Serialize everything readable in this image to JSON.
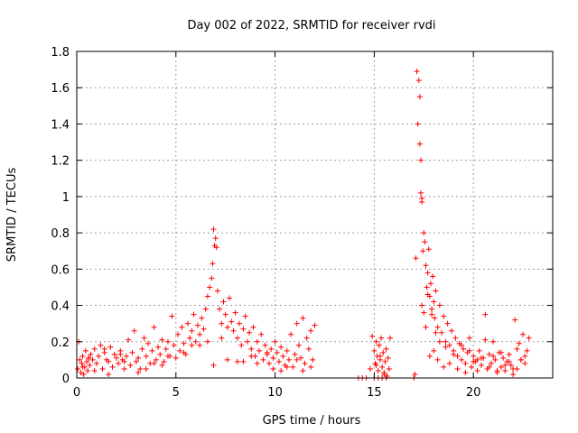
{
  "chart_data": {
    "type": "scatter",
    "title": "Day 002 of 2022, SRMTID for receiver rvdi",
    "xlabel": "GPS time / hours",
    "ylabel": "SRMTID / TECUs",
    "xlim": [
      0,
      24
    ],
    "ylim": [
      0,
      1.8
    ],
    "xticks": [
      0,
      5,
      10,
      15,
      20
    ],
    "xtick_labels": [
      "0",
      "5",
      "10",
      "15",
      "20"
    ],
    "yticks": [
      0,
      0.2,
      0.4,
      0.6,
      0.8,
      1.0,
      1.2,
      1.4,
      1.6,
      1.8
    ],
    "ytick_labels": [
      "0",
      "0.2",
      "0.4",
      "0.6",
      "0.8",
      "1",
      "1.2",
      "1.4",
      "1.6",
      "1.8"
    ],
    "marker": "+",
    "color": "#ff0000",
    "grid": true,
    "series": [
      {
        "name": "SRMTID",
        "x": [
          0.05,
          0.1,
          0.15,
          0.2,
          0.25,
          0.3,
          0.35,
          0.4,
          0.45,
          0.5,
          0.55,
          0.6,
          0.65,
          0.7,
          0.8,
          0.9,
          1.0,
          1.1,
          1.2,
          1.3,
          1.4,
          1.5,
          1.6,
          1.7,
          1.8,
          1.9,
          2.0,
          2.1,
          2.2,
          2.3,
          2.4,
          2.5,
          2.6,
          2.7,
          2.8,
          2.9,
          3.0,
          3.1,
          3.2,
          3.3,
          3.4,
          3.5,
          3.6,
          3.7,
          3.8,
          3.9,
          4.0,
          4.1,
          4.2,
          4.3,
          4.4,
          4.5,
          4.6,
          4.7,
          4.8,
          4.9,
          5.0,
          5.1,
          5.2,
          5.3,
          5.4,
          5.5,
          5.6,
          5.7,
          5.8,
          5.9,
          6.0,
          6.1,
          6.2,
          6.3,
          6.4,
          6.5,
          6.6,
          6.7,
          6.8,
          6.85,
          6.9,
          6.95,
          7.0,
          7.05,
          7.1,
          7.2,
          7.3,
          7.4,
          7.5,
          7.6,
          7.7,
          7.8,
          7.9,
          8.0,
          8.1,
          8.2,
          8.3,
          8.4,
          8.5,
          8.6,
          8.7,
          8.8,
          8.9,
          9.0,
          9.1,
          9.2,
          9.3,
          9.4,
          9.5,
          9.6,
          9.7,
          9.8,
          9.9,
          10.0,
          10.1,
          10.2,
          10.3,
          10.4,
          10.5,
          10.6,
          10.7,
          10.8,
          10.9,
          11.0,
          11.1,
          11.2,
          11.3,
          11.4,
          11.5,
          11.6,
          11.7,
          11.8,
          11.9,
          12.0,
          0.3,
          0.9,
          1.6,
          2.4,
          3.1,
          3.9,
          4.6,
          5.4,
          6.2,
          6.9,
          7.6,
          8.4,
          9.1,
          9.9,
          10.6,
          11.4,
          0.6,
          1.4,
          2.2,
          3.5,
          4.3,
          5.8,
          6.6,
          7.3,
          8.1,
          8.8,
          9.6,
          10.3,
          11.1,
          11.8,
          14.2,
          14.4,
          14.6,
          14.8,
          14.9,
          15.0,
          15.05,
          15.1,
          15.15,
          15.2,
          15.25,
          15.3,
          15.35,
          15.4,
          15.45,
          15.5,
          15.55,
          15.6,
          15.65,
          15.7,
          15.75,
          15.8,
          15.0,
          15.2,
          15.4,
          15.6,
          15.1,
          15.3,
          15.5,
          17.0,
          17.05,
          17.1,
          17.15,
          17.2,
          17.25,
          17.3,
          17.3,
          17.35,
          17.35,
          17.4,
          17.4,
          17.45,
          17.5,
          17.55,
          17.6,
          17.65,
          17.7,
          17.75,
          17.8,
          17.85,
          17.9,
          17.95,
          18.0,
          18.05,
          18.1,
          18.2,
          18.3,
          18.4,
          18.5,
          18.6,
          18.7,
          18.8,
          18.9,
          19.0,
          19.1,
          19.2,
          19.3,
          19.4,
          19.5,
          19.6,
          19.7,
          19.8,
          19.9,
          20.0,
          20.1,
          20.2,
          20.3,
          20.4,
          20.5,
          20.6,
          20.7,
          20.8,
          20.9,
          21.0,
          21.1,
          21.2,
          21.3,
          21.4,
          21.5,
          21.6,
          21.7,
          21.8,
          21.9,
          22.0,
          22.1,
          22.2,
          22.3,
          22.4,
          22.5,
          22.6,
          22.7,
          22.8,
          17.4,
          17.6,
          17.8,
          18.0,
          18.2,
          18.5,
          18.8,
          19.2,
          19.6,
          20.0,
          20.4,
          20.8,
          21.2,
          21.6,
          22.0,
          22.4,
          17.5,
          17.7,
          17.9,
          18.1,
          18.3,
          18.6,
          19.0,
          19.4,
          19.8,
          20.2,
          20.6,
          21.0,
          21.4,
          21.8,
          22.2,
          22.6
        ],
        "y": [
          0.05,
          0.2,
          0.1,
          0.03,
          0.08,
          0.12,
          0.02,
          0.06,
          0.15,
          0.09,
          0.04,
          0.11,
          0.07,
          0.13,
          0.1,
          0.16,
          0.08,
          0.12,
          0.18,
          0.05,
          0.14,
          0.1,
          0.09,
          0.17,
          0.06,
          0.13,
          0.11,
          0.08,
          0.15,
          0.1,
          0.05,
          0.12,
          0.21,
          0.07,
          0.14,
          0.26,
          0.09,
          0.11,
          0.05,
          0.16,
          0.22,
          0.12,
          0.19,
          0.08,
          0.15,
          0.28,
          0.1,
          0.17,
          0.13,
          0.21,
          0.09,
          0.16,
          0.2,
          0.12,
          0.34,
          0.18,
          0.11,
          0.24,
          0.15,
          0.28,
          0.19,
          0.13,
          0.3,
          0.22,
          0.26,
          0.35,
          0.2,
          0.29,
          0.24,
          0.33,
          0.27,
          0.38,
          0.45,
          0.5,
          0.55,
          0.63,
          0.82,
          0.73,
          0.77,
          0.72,
          0.48,
          0.38,
          0.3,
          0.42,
          0.35,
          0.28,
          0.44,
          0.31,
          0.26,
          0.36,
          0.22,
          0.3,
          0.18,
          0.27,
          0.34,
          0.2,
          0.25,
          0.16,
          0.28,
          0.12,
          0.2,
          0.15,
          0.24,
          0.1,
          0.18,
          0.13,
          0.08,
          0.16,
          0.11,
          0.2,
          0.14,
          0.09,
          0.17,
          0.12,
          0.07,
          0.15,
          0.1,
          0.24,
          0.06,
          0.13,
          0.3,
          0.18,
          0.11,
          0.33,
          0.08,
          0.22,
          0.16,
          0.26,
          0.1,
          0.29,
          0.06,
          0.04,
          0.02,
          0.09,
          0.03,
          0.08,
          0.12,
          0.14,
          0.18,
          0.07,
          0.1,
          0.09,
          0.08,
          0.05,
          0.06,
          0.04,
          0.11,
          0.16,
          0.13,
          0.05,
          0.07,
          0.18,
          0.2,
          0.22,
          0.09,
          0.12,
          0.14,
          0.04,
          0.1,
          0.06,
          0.0,
          0.0,
          0.0,
          0.05,
          0.23,
          0.15,
          0.08,
          0.2,
          0.12,
          0.04,
          0.18,
          0.1,
          0.22,
          0.06,
          0.14,
          0.02,
          0.09,
          0.16,
          0.01,
          0.11,
          0.05,
          0.22,
          0.0,
          0.0,
          0.0,
          0.0,
          0.07,
          0.12,
          0.03,
          0.0,
          0.02,
          0.66,
          1.69,
          1.4,
          1.64,
          1.29,
          1.55,
          1.2,
          1.02,
          0.97,
          0.99,
          0.7,
          0.8,
          0.75,
          0.62,
          0.5,
          0.58,
          0.71,
          0.45,
          0.52,
          0.38,
          0.56,
          0.42,
          0.33,
          0.48,
          0.28,
          0.4,
          0.25,
          0.34,
          0.2,
          0.3,
          0.18,
          0.26,
          0.15,
          0.22,
          0.12,
          0.19,
          0.1,
          0.16,
          0.08,
          0.14,
          0.22,
          0.06,
          0.12,
          0.09,
          0.04,
          0.15,
          0.07,
          0.11,
          0.35,
          0.05,
          0.13,
          0.08,
          0.2,
          0.1,
          0.03,
          0.14,
          0.06,
          0.11,
          0.04,
          0.09,
          0.13,
          0.07,
          0.02,
          0.32,
          0.05,
          0.19,
          0.1,
          0.24,
          0.08,
          0.15,
          0.22,
          0.4,
          0.28,
          0.12,
          0.15,
          0.1,
          0.06,
          0.08,
          0.05,
          0.03,
          0.09,
          0.11,
          0.06,
          0.04,
          0.07,
          0.05,
          0.1,
          0.36,
          0.46,
          0.35,
          0.25,
          0.2,
          0.17,
          0.13,
          0.18,
          0.15,
          0.1,
          0.21,
          0.12,
          0.14,
          0.09,
          0.16,
          0.12
        ]
      }
    ]
  }
}
